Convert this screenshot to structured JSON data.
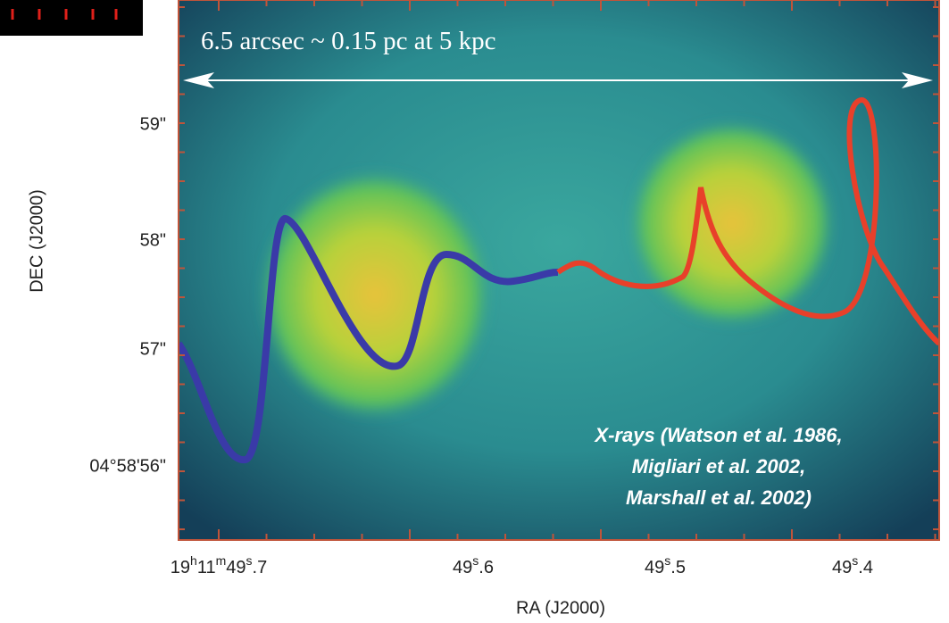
{
  "figure": {
    "scale_bar": "6.5 arcsec ~ 0.15 pc at 5 kpc",
    "y_axis": {
      "label": "DEC (J2000)",
      "ticks": [
        "59\"",
        "58\"",
        "57\"",
        "04°58'56\""
      ]
    },
    "x_axis": {
      "label": "RA (J2000)",
      "ticks": [
        "19h11m49s.7",
        "49s.6",
        "49s.5",
        "49s.4"
      ]
    },
    "caption": [
      "X-rays (Watson et al. 1986,",
      "Migliari et al. 2002,",
      "Marshall et al. 2002)"
    ]
  }
}
